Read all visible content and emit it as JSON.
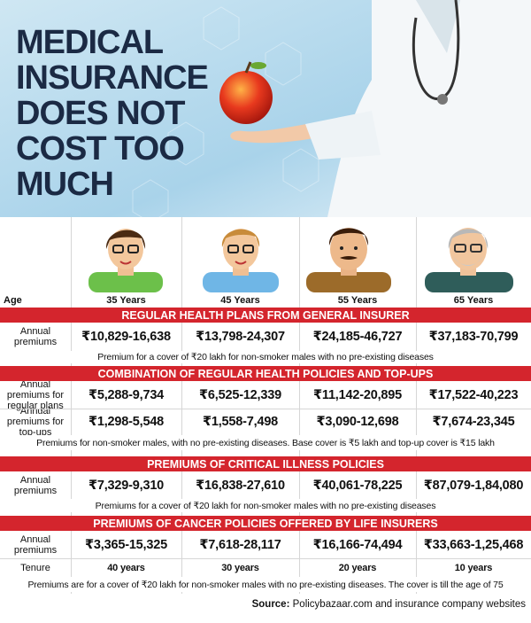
{
  "header": {
    "title_lines": [
      "MEDICAL",
      "INSURANCE",
      "DOES NOT",
      "COST TOO",
      "MUCH"
    ]
  },
  "table": {
    "age_label": "Age",
    "ages": [
      "35 Years",
      "45 Years",
      "55 Years",
      "65 Years"
    ],
    "sections": [
      {
        "title": "REGULAR HEALTH PLANS FROM GENERAL INSURER",
        "rows": [
          {
            "label": "Annual premiums",
            "values": [
              "₹10,829-16,638",
              "₹13,798-24,307",
              "₹24,185-46,727",
              "₹37,183-70,799"
            ]
          }
        ],
        "note": "Premium for a cover of ₹20 lakh for non-smoker males with no pre-existing diseases"
      },
      {
        "title": "COMBINATION OF REGULAR HEALTH POLICIES AND TOP-UPS",
        "rows": [
          {
            "label": "Annual premiums for regular plans",
            "values": [
              "₹5,288-9,734",
              "₹6,525-12,339",
              "₹11,142-20,895",
              "₹17,522-40,223"
            ]
          },
          {
            "label": "Annual premiums for top-ups",
            "values": [
              "₹1,298-5,548",
              "₹1,558-7,498",
              "₹3,090-12,698",
              "₹7,674-23,345"
            ]
          }
        ],
        "note": "Premiums for non-smoker males, with no pre-existing diseases. Base cover is ₹5 lakh and top-up cover is ₹15 lakh"
      },
      {
        "title": "PREMIUMS OF CRITICAL ILLNESS POLICIES",
        "rows": [
          {
            "label": "Annual premiums",
            "values": [
              "₹7,329-9,310",
              "₹16,838-27,610",
              "₹40,061-78,225",
              "₹87,079-1,84,080"
            ]
          }
        ],
        "note": "Premiums for a cover of ₹20 lakh for non-smoker males with no pre-existing diseases"
      },
      {
        "title": "PREMIUMS OF CANCER POLICIES OFFERED BY LIFE INSURERS",
        "rows": [
          {
            "label": "Annual premiums",
            "values": [
              "₹3,365-15,325",
              "₹7,618-28,117",
              "₹16,166-74,494",
              "₹33,663-1,25,468"
            ]
          },
          {
            "label": "Tenure",
            "values": [
              "40 years",
              "30 years",
              "20 years",
              "10 years"
            ]
          }
        ],
        "note": "Premiums are for a cover of ₹20 lakh for non-smoker males with no pre-existing diseases. The cover is till the age of 75"
      }
    ]
  },
  "source": {
    "label": "Source:",
    "text": "Policybazaar.com and insurance company websites"
  }
}
